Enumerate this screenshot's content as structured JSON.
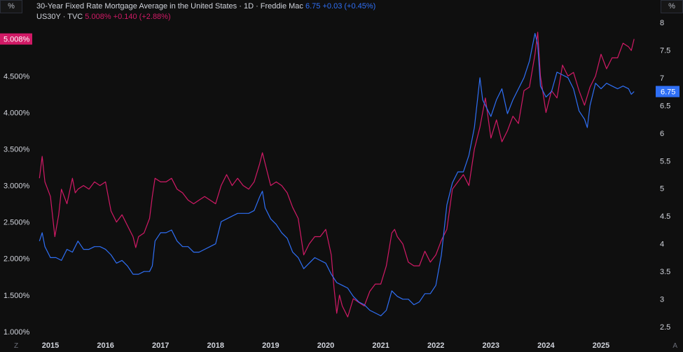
{
  "legend": {
    "series1": {
      "name": "30-Year Fixed Rate Mortgage Average in the United States · 1D · Freddie Mac",
      "value": "6.75",
      "change": "+0.03 (+0.45%)"
    },
    "series2": {
      "name": "US30Y · TVC",
      "value": "5.008%",
      "change": "+0.140 (+2.88%)"
    }
  },
  "left_unit": "%",
  "right_unit": "%",
  "corner_left": "Z",
  "corner_right": "A",
  "colors": {
    "mortgage": "#2f6ff5",
    "treasury": "#d11a66",
    "background": "#0f0f0f"
  },
  "chart_data": {
    "type": "line",
    "x_ticks": [
      "2015",
      "2016",
      "2017",
      "2018",
      "2019",
      "2020",
      "2021",
      "2022",
      "2023",
      "2024",
      "2025"
    ],
    "left_axis": {
      "ticks": [
        "1.000%",
        "1.500%",
        "2.000%",
        "2.500%",
        "3.000%",
        "3.500%",
        "4.000%",
        "4.500%"
      ],
      "range": [
        0.95,
        5.35
      ]
    },
    "right_axis": {
      "ticks": [
        "2.5",
        "3",
        "3.5",
        "4",
        "4.5",
        "5",
        "5.5",
        "6",
        "6.5",
        "7",
        "7.5",
        "8"
      ],
      "range": [
        2.35,
        8.15
      ]
    },
    "last_labels": {
      "treasury": "5.008%",
      "mortgage": "6.75"
    },
    "series": [
      {
        "name": "US30Y · TVC",
        "axis": "left",
        "color": "#d11a66",
        "x": [
          2014.8,
          2014.85,
          2014.9,
          2015.0,
          2015.08,
          2015.15,
          2015.2,
          2015.3,
          2015.4,
          2015.45,
          2015.5,
          2015.6,
          2015.7,
          2015.8,
          2015.9,
          2016.0,
          2016.05,
          2016.1,
          2016.2,
          2016.3,
          2016.4,
          2016.5,
          2016.55,
          2016.6,
          2016.7,
          2016.8,
          2016.85,
          2016.9,
          2017.0,
          2017.1,
          2017.2,
          2017.3,
          2017.4,
          2017.5,
          2017.6,
          2017.7,
          2017.8,
          2017.9,
          2018.0,
          2018.1,
          2018.2,
          2018.3,
          2018.4,
          2018.5,
          2018.6,
          2018.7,
          2018.8,
          2018.85,
          2018.9,
          2019.0,
          2019.1,
          2019.2,
          2019.3,
          2019.4,
          2019.5,
          2019.6,
          2019.7,
          2019.8,
          2019.9,
          2020.0,
          2020.1,
          2020.15,
          2020.2,
          2020.25,
          2020.3,
          2020.4,
          2020.5,
          2020.6,
          2020.7,
          2020.8,
          2020.9,
          2021.0,
          2021.1,
          2021.2,
          2021.25,
          2021.3,
          2021.4,
          2021.5,
          2021.6,
          2021.7,
          2021.8,
          2021.9,
          2022.0,
          2022.1,
          2022.2,
          2022.3,
          2022.4,
          2022.5,
          2022.6,
          2022.7,
          2022.8,
          2022.9,
          2023.0,
          2023.1,
          2023.2,
          2023.3,
          2023.4,
          2023.5,
          2023.6,
          2023.7,
          2023.8,
          2023.85,
          2023.9,
          2024.0,
          2024.1,
          2024.2,
          2024.3,
          2024.4,
          2024.5,
          2024.6,
          2024.7,
          2024.8,
          2024.9,
          2025.0,
          2025.1,
          2025.2,
          2025.3,
          2025.4,
          2025.5,
          2025.55,
          2025.6
        ],
        "y": [
          3.1,
          3.4,
          3.05,
          2.85,
          2.3,
          2.6,
          2.95,
          2.75,
          3.1,
          2.9,
          2.95,
          3.0,
          2.95,
          3.05,
          3.0,
          3.05,
          2.85,
          2.65,
          2.5,
          2.6,
          2.45,
          2.3,
          2.15,
          2.3,
          2.35,
          2.55,
          2.85,
          3.1,
          3.05,
          3.05,
          3.1,
          2.95,
          2.9,
          2.8,
          2.75,
          2.8,
          2.85,
          2.8,
          2.75,
          3.0,
          3.15,
          3.0,
          3.1,
          3.0,
          2.95,
          3.05,
          3.3,
          3.45,
          3.3,
          3.0,
          3.05,
          3.0,
          2.9,
          2.7,
          2.55,
          2.05,
          2.2,
          2.3,
          2.3,
          2.4,
          2.05,
          1.6,
          1.25,
          1.5,
          1.35,
          1.2,
          1.45,
          1.4,
          1.35,
          1.55,
          1.65,
          1.65,
          1.9,
          2.35,
          2.4,
          2.3,
          2.2,
          1.95,
          1.9,
          1.9,
          2.1,
          1.95,
          2.05,
          2.25,
          2.4,
          2.95,
          3.05,
          3.15,
          3.0,
          3.5,
          3.8,
          4.2,
          3.65,
          3.9,
          3.6,
          3.75,
          3.95,
          3.85,
          4.3,
          4.35,
          4.8,
          5.1,
          4.5,
          4.0,
          4.3,
          4.2,
          4.65,
          4.5,
          4.55,
          4.3,
          4.1,
          4.35,
          4.5,
          4.8,
          4.6,
          4.75,
          4.75,
          4.95,
          4.9,
          4.85,
          5.008
        ]
      },
      {
        "name": "30-Year Fixed Rate Mortgage Average in the United States",
        "axis": "right",
        "color": "#2f6ff5",
        "x": [
          2014.8,
          2014.85,
          2014.9,
          2015.0,
          2015.1,
          2015.2,
          2015.3,
          2015.4,
          2015.5,
          2015.6,
          2015.7,
          2015.8,
          2015.9,
          2016.0,
          2016.1,
          2016.2,
          2016.3,
          2016.4,
          2016.5,
          2016.6,
          2016.7,
          2016.8,
          2016.85,
          2016.9,
          2017.0,
          2017.1,
          2017.2,
          2017.3,
          2017.4,
          2017.5,
          2017.6,
          2017.7,
          2017.8,
          2017.9,
          2018.0,
          2018.1,
          2018.2,
          2018.3,
          2018.4,
          2018.5,
          2018.6,
          2018.7,
          2018.8,
          2018.85,
          2018.9,
          2019.0,
          2019.1,
          2019.2,
          2019.3,
          2019.4,
          2019.5,
          2019.6,
          2019.7,
          2019.8,
          2019.9,
          2020.0,
          2020.1,
          2020.2,
          2020.3,
          2020.4,
          2020.5,
          2020.6,
          2020.7,
          2020.8,
          2020.9,
          2021.0,
          2021.1,
          2021.2,
          2021.3,
          2021.4,
          2021.5,
          2021.6,
          2021.7,
          2021.8,
          2021.9,
          2022.0,
          2022.1,
          2022.2,
          2022.3,
          2022.4,
          2022.5,
          2022.6,
          2022.7,
          2022.8,
          2022.85,
          2022.9,
          2023.0,
          2023.1,
          2023.2,
          2023.3,
          2023.4,
          2023.5,
          2023.6,
          2023.7,
          2023.8,
          2023.85,
          2023.9,
          2024.0,
          2024.1,
          2024.2,
          2024.3,
          2024.4,
          2024.5,
          2024.6,
          2024.7,
          2024.75,
          2024.8,
          2024.9,
          2025.0,
          2025.1,
          2025.2,
          2025.3,
          2025.4,
          2025.5,
          2025.55,
          2025.6
        ],
        "y": [
          4.05,
          4.2,
          3.95,
          3.75,
          3.75,
          3.7,
          3.9,
          3.85,
          4.05,
          3.9,
          3.9,
          3.95,
          3.95,
          3.9,
          3.8,
          3.65,
          3.7,
          3.6,
          3.45,
          3.45,
          3.5,
          3.5,
          3.6,
          4.05,
          4.2,
          4.2,
          4.25,
          4.05,
          3.95,
          3.95,
          3.85,
          3.85,
          3.9,
          3.95,
          4.0,
          4.4,
          4.45,
          4.5,
          4.55,
          4.55,
          4.55,
          4.6,
          4.85,
          4.95,
          4.65,
          4.45,
          4.35,
          4.2,
          4.1,
          3.85,
          3.75,
          3.55,
          3.65,
          3.75,
          3.7,
          3.65,
          3.45,
          3.3,
          3.25,
          3.2,
          3.05,
          2.95,
          2.9,
          2.8,
          2.75,
          2.7,
          2.8,
          3.15,
          3.05,
          3.0,
          3.0,
          2.9,
          2.95,
          3.1,
          3.1,
          3.25,
          3.8,
          4.7,
          5.1,
          5.3,
          5.3,
          5.6,
          6.1,
          7.0,
          6.6,
          6.5,
          6.3,
          6.6,
          6.8,
          6.35,
          6.6,
          6.8,
          7.0,
          7.3,
          7.8,
          7.6,
          6.85,
          6.65,
          6.75,
          7.1,
          7.05,
          7.0,
          6.8,
          6.4,
          6.25,
          6.1,
          6.5,
          6.9,
          6.8,
          6.9,
          6.85,
          6.8,
          6.85,
          6.8,
          6.7,
          6.75
        ]
      }
    ]
  }
}
